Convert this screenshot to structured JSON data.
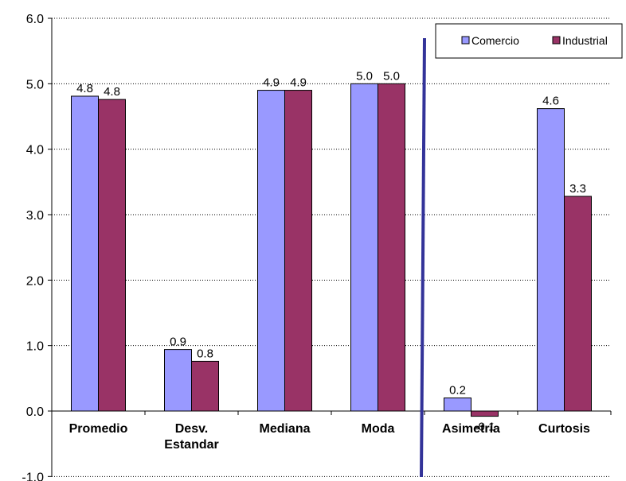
{
  "chart_data": {
    "type": "bar",
    "categories": [
      [
        "Promedio"
      ],
      [
        "Desv.",
        "Estandar"
      ],
      [
        "Mediana"
      ],
      [
        "Moda"
      ],
      [
        "Asimetría"
      ],
      [
        "Curtosis"
      ]
    ],
    "series": [
      {
        "name": "Comercio",
        "color": "#9999ff",
        "values": [
          4.81,
          0.94,
          4.9,
          5.0,
          0.2,
          4.62
        ],
        "labels": [
          "4.8",
          "0.9",
          "4.9",
          "5.0",
          "0.2",
          "4.6"
        ]
      },
      {
        "name": "Industrial",
        "color": "#993366",
        "values": [
          4.76,
          0.76,
          4.9,
          5.0,
          -0.08,
          3.28
        ],
        "labels": [
          "4.8",
          "0.8",
          "4.9",
          "5.0",
          "-0.1",
          "3.3"
        ]
      }
    ],
    "ylim": [
      -1.0,
      6.0
    ],
    "yticks": [
      "-1.0",
      "0.0",
      "1.0",
      "2.0",
      "3.0",
      "4.0",
      "5.0",
      "6.0"
    ],
    "grid": true,
    "legend_position": "top-right",
    "divider_after_category": 4,
    "divider_color": "#333399"
  }
}
